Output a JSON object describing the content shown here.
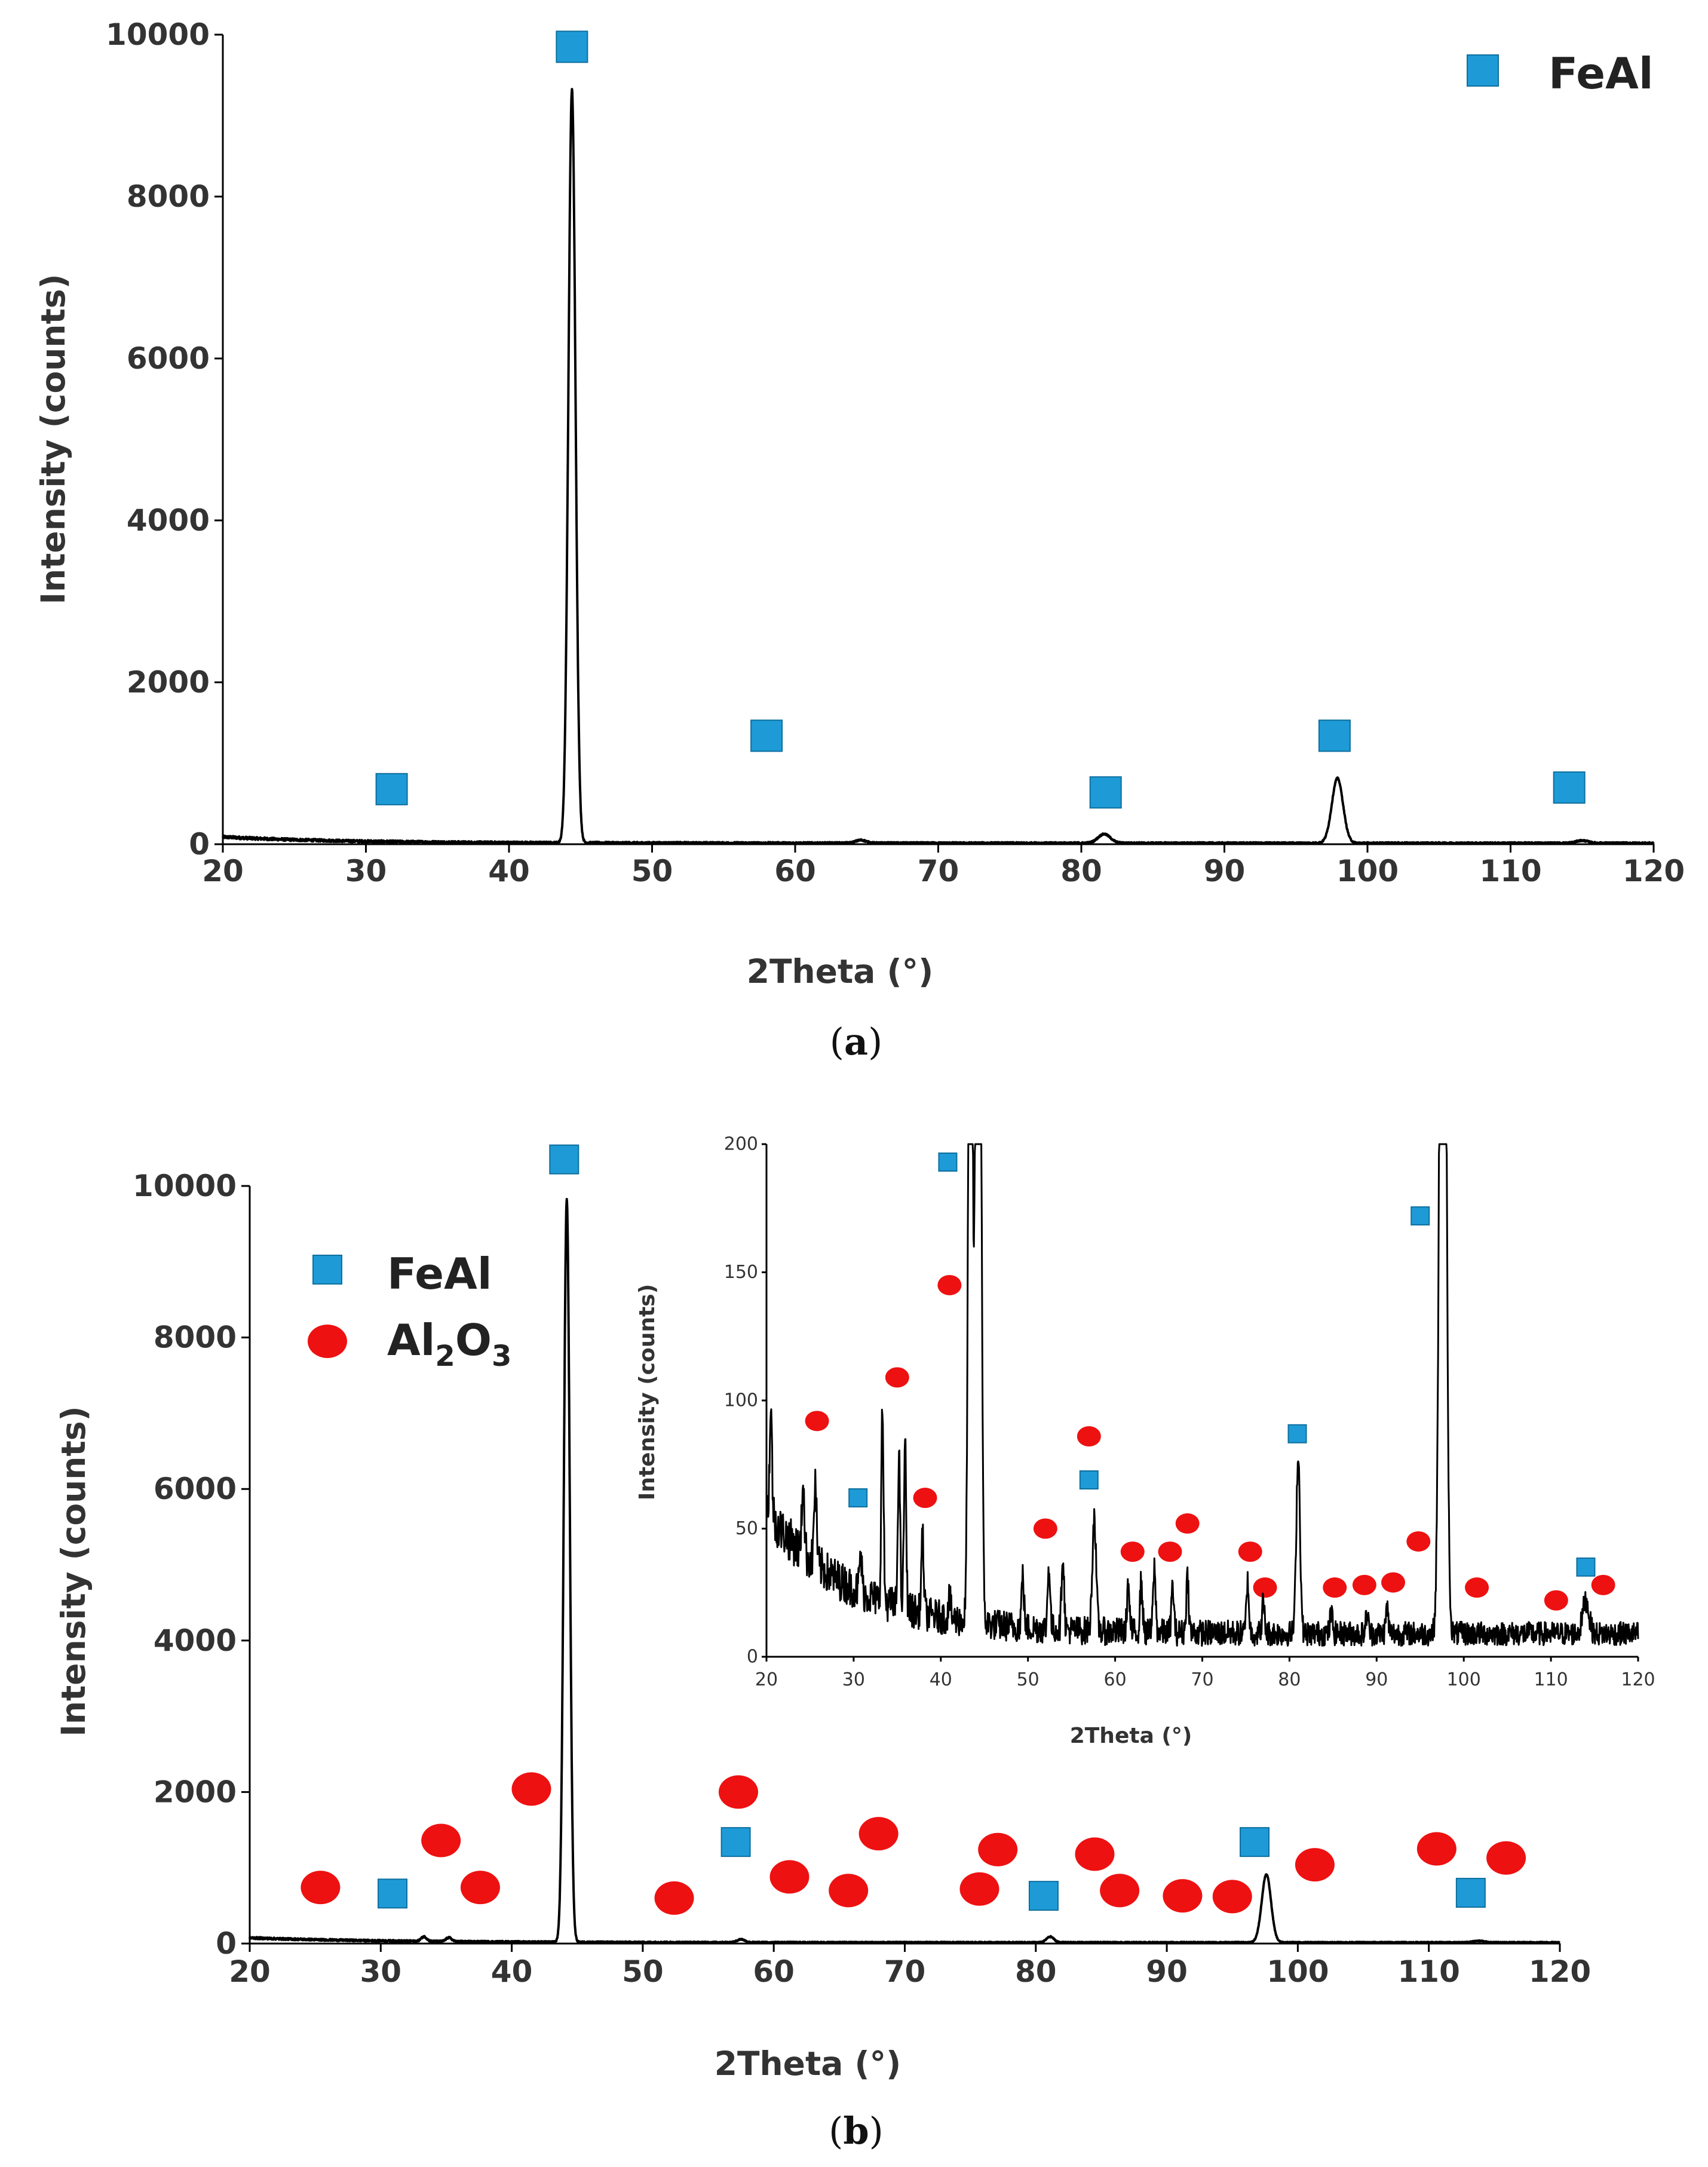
{
  "colors": {
    "feal": "#1E9BD7",
    "al2o3": "#EE1111",
    "trace": "#000000"
  },
  "chart_data": [
    {
      "type": "line",
      "panel_label": "a",
      "title": "",
      "xlabel": "2Theta (°)",
      "ylabel": "Intensity (counts)",
      "xlim": [
        20,
        120
      ],
      "ylim": [
        0,
        10000
      ],
      "xticks": [
        "20",
        "30",
        "40",
        "50",
        "60",
        "70",
        "80",
        "90",
        "100",
        "110",
        "120"
      ],
      "yticks": [
        "0",
        "2000",
        "4000",
        "6000",
        "8000",
        "10000"
      ],
      "legend": {
        "position": "top-right",
        "entries": [
          {
            "name": "FeAl",
            "marker": "square"
          }
        ]
      },
      "peaks": [
        {
          "x": 44.4,
          "y": 9300,
          "width": 0.35
        },
        {
          "x": 64.6,
          "y": 35,
          "width": 0.5
        },
        {
          "x": 81.6,
          "y": 110,
          "width": 0.6
        },
        {
          "x": 97.9,
          "y": 800,
          "width": 0.55
        },
        {
          "x": 115.0,
          "y": 30,
          "width": 0.6
        }
      ],
      "background": {
        "base": 15,
        "amplitude": 75,
        "decay": 8
      },
      "markers": [
        {
          "series": "FeAl",
          "x": 31.8,
          "y": 680
        },
        {
          "series": "FeAl",
          "x": 44.4,
          "y": 9850
        },
        {
          "series": "FeAl",
          "x": 58.0,
          "y": 1340
        },
        {
          "series": "FeAl",
          "x": 81.7,
          "y": 640
        },
        {
          "series": "FeAl",
          "x": 97.7,
          "y": 1340
        },
        {
          "series": "FeAl",
          "x": 114.1,
          "y": 700
        }
      ]
    },
    {
      "type": "line",
      "panel_label": "b",
      "title": "",
      "xlabel": "2Theta (°)",
      "ylabel": "Intensity (counts)",
      "xlim": [
        20,
        120
      ],
      "ylim": [
        0,
        10000
      ],
      "xticks": [
        "20",
        "30",
        "40",
        "50",
        "60",
        "70",
        "80",
        "90",
        "100",
        "110",
        "120"
      ],
      "yticks": [
        "0",
        "2000",
        "4000",
        "6000",
        "8000",
        "10000"
      ],
      "legend": {
        "position": "top-left",
        "entries": [
          {
            "name": "FeAl",
            "marker": "square"
          },
          {
            "name": "Al2O3",
            "marker": "circle"
          }
        ]
      },
      "peaks": [
        {
          "x": 33.3,
          "y": 60,
          "width": 0.3
        },
        {
          "x": 35.2,
          "y": 50,
          "width": 0.3
        },
        {
          "x": 44.2,
          "y": 9800,
          "width": 0.32
        },
        {
          "x": 57.5,
          "y": 40,
          "width": 0.4
        },
        {
          "x": 81.1,
          "y": 75,
          "width": 0.4
        },
        {
          "x": 97.6,
          "y": 900,
          "width": 0.5
        },
        {
          "x": 113.8,
          "y": 20,
          "width": 0.6
        }
      ],
      "background": {
        "base": 15,
        "amplitude": 60,
        "decay": 10
      },
      "markers": [
        {
          "series": "Al2O3",
          "x": 25.4,
          "y": 740
        },
        {
          "series": "FeAl",
          "x": 30.9,
          "y": 660
        },
        {
          "series": "Al2O3",
          "x": 34.6,
          "y": 1360
        },
        {
          "series": "Al2O3",
          "x": 37.6,
          "y": 740
        },
        {
          "series": "Al2O3",
          "x": 41.5,
          "y": 2040
        },
        {
          "series": "FeAl",
          "x": 44.0,
          "y": 10350
        },
        {
          "series": "Al2O3",
          "x": 52.4,
          "y": 600
        },
        {
          "series": "FeAl",
          "x": 57.1,
          "y": 1340
        },
        {
          "series": "Al2O3",
          "x": 57.3,
          "y": 2000
        },
        {
          "series": "Al2O3",
          "x": 61.2,
          "y": 880
        },
        {
          "series": "Al2O3",
          "x": 65.7,
          "y": 700
        },
        {
          "series": "Al2O3",
          "x": 68.0,
          "y": 1450
        },
        {
          "series": "Al2O3",
          "x": 75.7,
          "y": 720
        },
        {
          "series": "Al2O3",
          "x": 77.1,
          "y": 1240
        },
        {
          "series": "FeAl",
          "x": 80.6,
          "y": 630
        },
        {
          "series": "Al2O3",
          "x": 84.5,
          "y": 1180
        },
        {
          "series": "Al2O3",
          "x": 86.4,
          "y": 700
        },
        {
          "series": "Al2O3",
          "x": 91.2,
          "y": 630
        },
        {
          "series": "Al2O3",
          "x": 95.0,
          "y": 620
        },
        {
          "series": "FeAl",
          "x": 96.7,
          "y": 1340
        },
        {
          "series": "Al2O3",
          "x": 101.3,
          "y": 1040
        },
        {
          "series": "Al2O3",
          "x": 110.6,
          "y": 1250
        },
        {
          "series": "FeAl",
          "x": 113.2,
          "y": 670
        },
        {
          "series": "Al2O3",
          "x": 115.9,
          "y": 1130
        }
      ]
    },
    {
      "type": "line",
      "panel_label": "",
      "title": "",
      "xlabel": "2Theta (°)",
      "ylabel": "Intensity (counts)",
      "xlim": [
        20,
        120
      ],
      "ylim": [
        0,
        200
      ],
      "xticks": [
        "20",
        "30",
        "40",
        "50",
        "60",
        "70",
        "80",
        "90",
        "100",
        "110",
        "120"
      ],
      "yticks": [
        "0",
        "50",
        "100",
        "150",
        "200"
      ],
      "peaks": [
        {
          "x": 20.5,
          "y": 40,
          "width": 0.2
        },
        {
          "x": 24.2,
          "y": 28,
          "width": 0.2
        },
        {
          "x": 25.6,
          "y": 32,
          "width": 0.2
        },
        {
          "x": 30.8,
          "y": 14,
          "width": 0.2
        },
        {
          "x": 33.3,
          "y": 75,
          "width": 0.18
        },
        {
          "x": 35.2,
          "y": 60,
          "width": 0.18
        },
        {
          "x": 35.9,
          "y": 65,
          "width": 0.18
        },
        {
          "x": 37.9,
          "y": 30,
          "width": 0.2
        },
        {
          "x": 41.0,
          "y": 8,
          "width": 0.2
        },
        {
          "x": 43.4,
          "y": 400,
          "width": 0.3
        },
        {
          "x": 44.3,
          "y": 600,
          "width": 0.35
        },
        {
          "x": 49.4,
          "y": 20,
          "width": 0.2
        },
        {
          "x": 52.4,
          "y": 25,
          "width": 0.2
        },
        {
          "x": 54.0,
          "y": 30,
          "width": 0.2
        },
        {
          "x": 57.6,
          "y": 45,
          "width": 0.3
        },
        {
          "x": 61.5,
          "y": 18,
          "width": 0.2
        },
        {
          "x": 63.0,
          "y": 20,
          "width": 0.2
        },
        {
          "x": 64.5,
          "y": 25,
          "width": 0.2
        },
        {
          "x": 66.6,
          "y": 18,
          "width": 0.2
        },
        {
          "x": 68.3,
          "y": 22,
          "width": 0.2
        },
        {
          "x": 75.2,
          "y": 20,
          "width": 0.2
        },
        {
          "x": 77.0,
          "y": 12,
          "width": 0.2
        },
        {
          "x": 81.0,
          "y": 70,
          "width": 0.3
        },
        {
          "x": 84.8,
          "y": 8,
          "width": 0.2
        },
        {
          "x": 88.9,
          "y": 8,
          "width": 0.2
        },
        {
          "x": 91.2,
          "y": 10,
          "width": 0.2
        },
        {
          "x": 97.6,
          "y": 500,
          "width": 0.45
        },
        {
          "x": 114.0,
          "y": 13,
          "width": 0.5
        }
      ],
      "background": {
        "base": 9,
        "amplitude": 48,
        "decay": 10
      },
      "markers": [
        {
          "series": "Al2O3",
          "x": 25.8,
          "y": 92
        },
        {
          "series": "FeAl",
          "x": 30.5,
          "y": 62
        },
        {
          "series": "Al2O3",
          "x": 35.0,
          "y": 109
        },
        {
          "series": "Al2O3",
          "x": 38.2,
          "y": 62
        },
        {
          "series": "FeAl",
          "x": 40.8,
          "y": 193
        },
        {
          "series": "Al2O3",
          "x": 41.0,
          "y": 145
        },
        {
          "series": "Al2O3",
          "x": 52.0,
          "y": 50
        },
        {
          "series": "FeAl",
          "x": 57.0,
          "y": 69
        },
        {
          "series": "Al2O3",
          "x": 57.0,
          "y": 86
        },
        {
          "series": "Al2O3",
          "x": 62.0,
          "y": 41
        },
        {
          "series": "Al2O3",
          "x": 66.3,
          "y": 41
        },
        {
          "series": "Al2O3",
          "x": 68.3,
          "y": 52
        },
        {
          "series": "Al2O3",
          "x": 75.5,
          "y": 41
        },
        {
          "series": "Al2O3",
          "x": 77.2,
          "y": 27
        },
        {
          "series": "FeAl",
          "x": 80.9,
          "y": 87
        },
        {
          "series": "Al2O3",
          "x": 85.2,
          "y": 27
        },
        {
          "series": "Al2O3",
          "x": 88.6,
          "y": 28
        },
        {
          "series": "Al2O3",
          "x": 91.9,
          "y": 29
        },
        {
          "series": "Al2O3",
          "x": 94.8,
          "y": 45
        },
        {
          "series": "FeAl",
          "x": 95.0,
          "y": 172
        },
        {
          "series": "Al2O3",
          "x": 101.5,
          "y": 27
        },
        {
          "series": "Al2O3",
          "x": 110.6,
          "y": 22
        },
        {
          "series": "FeAl",
          "x": 114.0,
          "y": 35
        },
        {
          "series": "Al2O3",
          "x": 116.0,
          "y": 28
        }
      ]
    }
  ]
}
